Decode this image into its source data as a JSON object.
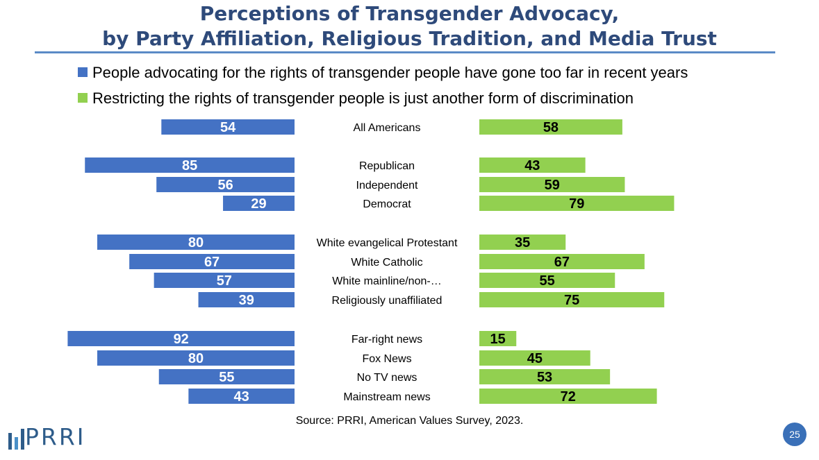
{
  "slide": {
    "page_number": "25",
    "logo_text": "PRRI"
  },
  "chart_data": {
    "type": "bar",
    "title_line1": "Perceptions of Transgender Advocacy,",
    "title_line2": "by Party Affiliation, Religious Tradition, and Media Trust",
    "series": [
      {
        "name": "People advocating for the rights of transgender people have gone too far in recent years",
        "color": "#4472C4",
        "values": [
          54,
          85,
          56,
          29,
          80,
          67,
          57,
          39,
          92,
          80,
          55,
          43
        ]
      },
      {
        "name": "Restricting the rights of transgender people is just another form of discrimination",
        "color": "#92D050",
        "values": [
          58,
          43,
          59,
          79,
          35,
          67,
          55,
          75,
          15,
          45,
          53,
          72
        ]
      }
    ],
    "categories": [
      "All Americans",
      "Republican",
      "Independent",
      "Democrat",
      "White evangelical Protestant",
      "White Catholic",
      "White mainline/non-…",
      "Religiously unaffiliated",
      "Far-right news",
      "Fox News",
      "No TV news",
      "Mainstream news"
    ],
    "source": "Source: PRRI, American Values Survey, 2023."
  }
}
